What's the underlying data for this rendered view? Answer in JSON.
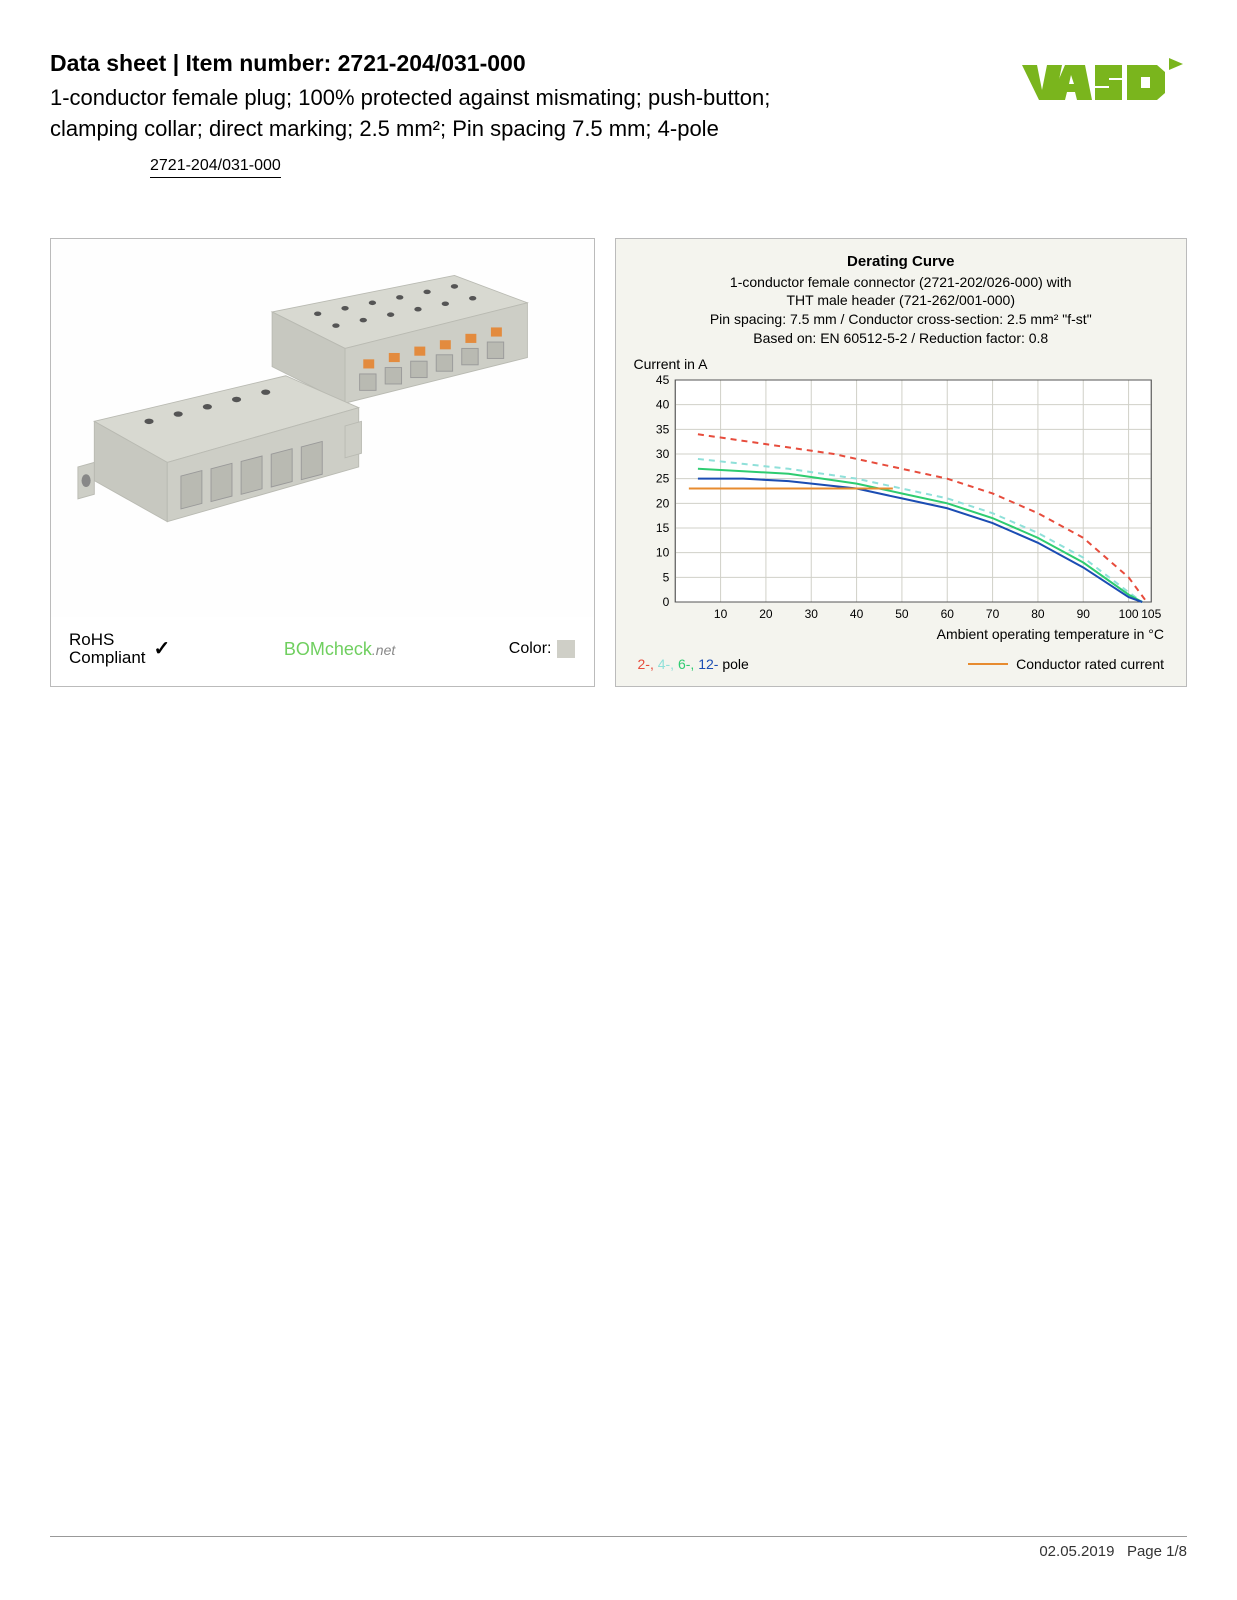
{
  "header": {
    "title_prefix": "Data sheet  |  Item number: ",
    "item_number": "2721-204/031-000",
    "subtitle": "1-conductor female plug; 100% protected against mismating; push-button; clamping collar; direct marking; 2.5 mm²; Pin spacing 7.5 mm; 4-pole",
    "item_link": "2721-204/031-000",
    "logo_text": "WAGO",
    "logo_color": "#7ab51d"
  },
  "product_panel": {
    "rohs_line1": "RoHS",
    "rohs_line2": "Compliant",
    "check_glyph": "✓",
    "bomcheck_label": "BOMcheck",
    "bomcheck_suffix": ".net",
    "color_label": "Color:",
    "color_swatch": "#cfcfc7",
    "connector_body_color": "#d8d9d1",
    "connector_shadow": "#b9bab2",
    "connector_button": "#e38b3e"
  },
  "chart": {
    "title": "Derating Curve",
    "desc_line1": "1-conductor female connector (2721-202/026-000) with",
    "desc_line2": "THT male header (721-262/001-000)",
    "desc_line3": "Pin spacing: 7.5 mm / Conductor cross-section: 2.5 mm² \"f-st\"",
    "desc_line4": "Based on: EN 60512-5-2 / Reduction factor: 0.8",
    "y_label": "Current in A",
    "x_label": "Ambient operating temperature in °C",
    "ylim": [
      0,
      45
    ],
    "ytick_step": 5,
    "xlim": [
      0,
      105
    ],
    "xticks": [
      10,
      20,
      30,
      40,
      50,
      60,
      70,
      80,
      90,
      100,
      105
    ],
    "background_color": "#ffffff",
    "grid_color": "#d0d0c8",
    "panel_bg": "#f4f4ee",
    "series": {
      "pole2": {
        "color": "#e74c3c",
        "dash": "6,5",
        "width": 2,
        "points": [
          [
            5,
            34
          ],
          [
            20,
            32
          ],
          [
            35,
            30
          ],
          [
            50,
            27
          ],
          [
            60,
            25
          ],
          [
            70,
            22
          ],
          [
            80,
            18
          ],
          [
            90,
            13
          ],
          [
            100,
            5
          ],
          [
            104,
            0
          ]
        ]
      },
      "pole4": {
        "color": "#8fe0d9",
        "dash": "6,5",
        "width": 2,
        "points": [
          [
            5,
            29
          ],
          [
            15,
            28
          ],
          [
            25,
            27
          ],
          [
            40,
            25
          ],
          [
            50,
            23
          ],
          [
            60,
            21
          ],
          [
            70,
            18
          ],
          [
            80,
            14
          ],
          [
            90,
            9
          ],
          [
            100,
            2
          ],
          [
            103,
            0
          ]
        ]
      },
      "pole6": {
        "color": "#2ecc71",
        "dash": "",
        "width": 2,
        "points": [
          [
            5,
            27
          ],
          [
            15,
            26.5
          ],
          [
            25,
            26
          ],
          [
            40,
            24
          ],
          [
            50,
            22
          ],
          [
            60,
            20
          ],
          [
            70,
            17
          ],
          [
            80,
            13
          ],
          [
            90,
            8
          ],
          [
            100,
            1.5
          ],
          [
            103,
            0
          ]
        ]
      },
      "pole12": {
        "color": "#1b4db3",
        "dash": "",
        "width": 2,
        "points": [
          [
            5,
            25
          ],
          [
            15,
            25
          ],
          [
            25,
            24.5
          ],
          [
            40,
            23
          ],
          [
            50,
            21
          ],
          [
            60,
            19
          ],
          [
            70,
            16
          ],
          [
            80,
            12
          ],
          [
            90,
            7
          ],
          [
            100,
            1
          ],
          [
            103,
            0
          ]
        ]
      },
      "rated": {
        "color": "#e78b2f",
        "dash": "",
        "width": 2,
        "points": [
          [
            3,
            23
          ],
          [
            48,
            23
          ]
        ]
      }
    },
    "legend": {
      "p2": "2-,",
      "p4": "4-,",
      "p6": "6-,",
      "p12": "12-",
      "suffix": " pole",
      "rated": "Conductor rated current"
    }
  },
  "footer": {
    "date": "02.05.2019",
    "page": "Page 1/8"
  }
}
